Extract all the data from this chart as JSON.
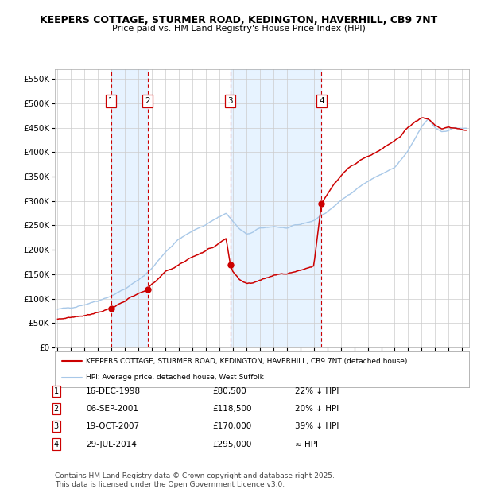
{
  "title_line1": "KEEPERS COTTAGE, STURMER ROAD, KEDINGTON, HAVERHILL, CB9 7NT",
  "title_line2": "Price paid vs. HM Land Registry's House Price Index (HPI)",
  "ylabel_values": [
    "£0",
    "£50K",
    "£100K",
    "£150K",
    "£200K",
    "£250K",
    "£300K",
    "£350K",
    "£400K",
    "£450K",
    "£500K",
    "£550K"
  ],
  "yticks": [
    0,
    50000,
    100000,
    150000,
    200000,
    250000,
    300000,
    350000,
    400000,
    450000,
    500000,
    550000
  ],
  "ylim": [
    0,
    570000
  ],
  "xlim_start": 1994.8,
  "xlim_end": 2025.5,
  "background_color": "#ffffff",
  "plot_bg_color": "#ffffff",
  "grid_color": "#cccccc",
  "hpi_line_color": "#a8c8e8",
  "price_line_color": "#cc0000",
  "sale_marker_color": "#cc0000",
  "dashed_line_color": "#cc0000",
  "shade_color": "#ddeeff",
  "transactions": [
    {
      "label": "1",
      "date_str": "16-DEC-1998",
      "date_x": 1998.96,
      "price": 80500,
      "price_str": "£80,500",
      "hpi_rel": "22% ↓ HPI"
    },
    {
      "label": "2",
      "date_str": "06-SEP-2001",
      "date_x": 2001.67,
      "price": 118500,
      "price_str": "£118,500",
      "hpi_rel": "20% ↓ HPI"
    },
    {
      "label": "3",
      "date_str": "19-OCT-2007",
      "date_x": 2007.8,
      "price": 170000,
      "price_str": "£170,000",
      "hpi_rel": "39% ↓ HPI"
    },
    {
      "label": "4",
      "date_str": "29-JUL-2014",
      "date_x": 2014.57,
      "price": 295000,
      "price_str": "£295,000",
      "hpi_rel": "≈ HPI"
    }
  ],
  "legend_line1": "KEEPERS COTTAGE, STURMER ROAD, KEDINGTON, HAVERHILL, CB9 7NT (detached house)",
  "legend_line2": "HPI: Average price, detached house, West Suffolk",
  "footnote": "Contains HM Land Registry data © Crown copyright and database right 2025.\nThis data is licensed under the Open Government Licence v3.0.",
  "footnote_fontsize": 6.5,
  "hpi_points": [
    [
      1995.0,
      78000
    ],
    [
      1996.0,
      82000
    ],
    [
      1997.0,
      88000
    ],
    [
      1998.0,
      96000
    ],
    [
      1999.0,
      106000
    ],
    [
      2000.0,
      120000
    ],
    [
      2001.0,
      138000
    ],
    [
      2002.0,
      162000
    ],
    [
      2003.0,
      196000
    ],
    [
      2004.0,
      222000
    ],
    [
      2005.0,
      238000
    ],
    [
      2006.0,
      252000
    ],
    [
      2007.0,
      268000
    ],
    [
      2007.5,
      275000
    ],
    [
      2008.0,
      258000
    ],
    [
      2008.5,
      242000
    ],
    [
      2009.0,
      232000
    ],
    [
      2009.5,
      236000
    ],
    [
      2010.0,
      244000
    ],
    [
      2011.0,
      248000
    ],
    [
      2012.0,
      244000
    ],
    [
      2013.0,
      252000
    ],
    [
      2014.0,
      260000
    ],
    [
      2015.0,
      278000
    ],
    [
      2016.0,
      300000
    ],
    [
      2017.0,
      322000
    ],
    [
      2018.0,
      340000
    ],
    [
      2019.0,
      355000
    ],
    [
      2020.0,
      368000
    ],
    [
      2021.0,
      402000
    ],
    [
      2022.0,
      452000
    ],
    [
      2022.5,
      468000
    ],
    [
      2023.0,
      450000
    ],
    [
      2023.5,
      442000
    ],
    [
      2024.0,
      445000
    ],
    [
      2024.5,
      450000
    ],
    [
      2025.0,
      448000
    ]
  ],
  "red_points": [
    [
      1995.0,
      58000
    ],
    [
      1996.0,
      62000
    ],
    [
      1997.0,
      66000
    ],
    [
      1998.0,
      72000
    ],
    [
      1998.96,
      80500
    ],
    [
      1999.5,
      88000
    ],
    [
      2000.0,
      95000
    ],
    [
      2000.5,
      103000
    ],
    [
      2001.0,
      110000
    ],
    [
      2001.67,
      118500
    ],
    [
      2002.0,
      130000
    ],
    [
      2002.5,
      142000
    ],
    [
      2003.0,
      155000
    ],
    [
      2003.5,
      162000
    ],
    [
      2004.0,
      170000
    ],
    [
      2004.5,
      178000
    ],
    [
      2005.0,
      185000
    ],
    [
      2005.5,
      192000
    ],
    [
      2006.0,
      198000
    ],
    [
      2006.5,
      205000
    ],
    [
      2007.0,
      215000
    ],
    [
      2007.5,
      222000
    ],
    [
      2007.8,
      170000
    ],
    [
      2008.0,
      155000
    ],
    [
      2008.5,
      138000
    ],
    [
      2009.0,
      130000
    ],
    [
      2009.5,
      133000
    ],
    [
      2010.0,
      138000
    ],
    [
      2010.5,
      143000
    ],
    [
      2011.0,
      148000
    ],
    [
      2011.5,
      152000
    ],
    [
      2012.0,
      150000
    ],
    [
      2012.5,
      155000
    ],
    [
      2013.0,
      158000
    ],
    [
      2013.5,
      163000
    ],
    [
      2014.0,
      167000
    ],
    [
      2014.57,
      295000
    ],
    [
      2015.0,
      315000
    ],
    [
      2015.5,
      335000
    ],
    [
      2016.0,
      352000
    ],
    [
      2016.5,
      365000
    ],
    [
      2017.0,
      375000
    ],
    [
      2017.5,
      385000
    ],
    [
      2018.0,
      392000
    ],
    [
      2018.5,
      398000
    ],
    [
      2019.0,
      405000
    ],
    [
      2019.5,
      415000
    ],
    [
      2020.0,
      422000
    ],
    [
      2020.5,
      435000
    ],
    [
      2021.0,
      452000
    ],
    [
      2021.5,
      462000
    ],
    [
      2022.0,
      470000
    ],
    [
      2022.5,
      468000
    ],
    [
      2023.0,
      455000
    ],
    [
      2023.5,
      448000
    ],
    [
      2024.0,
      452000
    ],
    [
      2024.5,
      448000
    ],
    [
      2025.0,
      445000
    ]
  ]
}
